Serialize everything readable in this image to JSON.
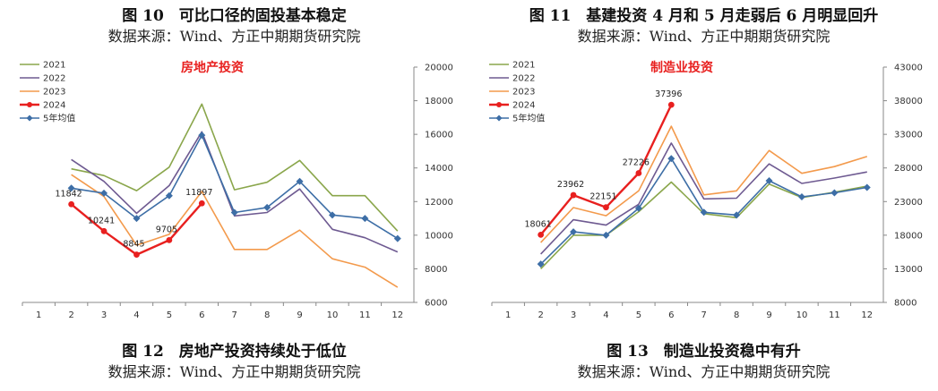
{
  "left": {
    "top_title": "图 10　可比口径的固投基本稳定",
    "top_source": "数据来源：Wind、方正中期期货研究院",
    "bottom_title": "图 12　房地产投资持续处于低位",
    "bottom_source": "数据来源：Wind、方正中期期货研究院"
  },
  "right": {
    "top_title": "图 11　基建投资 4 月和 5 月走弱后 6 月明显回升",
    "top_source": "数据来源：Wind、方正中期期货研究院",
    "bottom_title": "图 13　制造业投资稳中有升",
    "bottom_source": "数据来源：Wind、方正中期期货研究院"
  },
  "chart_data": [
    {
      "type": "line",
      "title": "房地产投资",
      "title_color": "#e8201f",
      "categories": [
        "1",
        "2",
        "3",
        "4",
        "5",
        "6",
        "7",
        "8",
        "9",
        "10",
        "11",
        "12"
      ],
      "yticks": [
        "6000",
        "8000",
        "10000",
        "12000",
        "14000",
        "16000",
        "18000",
        "20000"
      ],
      "ylim": [
        6000,
        20000
      ],
      "y_axis_side": "right",
      "grid": false,
      "legend_position": "top-left",
      "series": [
        {
          "name": "2021",
          "color": "#8aa64b",
          "marker": false,
          "values": [
            null,
            13950,
            13550,
            12650,
            14050,
            17800,
            12700,
            13150,
            14450,
            12350,
            12350,
            10250
          ],
          "labels": []
        },
        {
          "name": "2022",
          "color": "#6e5a91",
          "marker": false,
          "values": [
            null,
            14500,
            13200,
            11300,
            12950,
            16150,
            11150,
            11350,
            12750,
            10350,
            9850,
            9000
          ],
          "labels": []
        },
        {
          "name": "2023",
          "color": "#f39a4c",
          "marker": false,
          "values": [
            null,
            13600,
            12300,
            9400,
            10050,
            12600,
            9150,
            9150,
            10300,
            8600,
            8100,
            6900
          ],
          "labels": []
        },
        {
          "name": "2024",
          "color": "#e8201f",
          "marker": "circle",
          "bold": true,
          "values": [
            null,
            11842,
            10241,
            8845,
            9705,
            11897,
            null,
            null,
            null,
            null,
            null,
            null
          ],
          "labels": [
            "",
            "11842",
            "10241",
            "8845",
            "9705",
            "11897",
            "",
            "",
            "",
            "",
            "",
            ""
          ]
        },
        {
          "name": "5年均值",
          "color": "#3d6ea6",
          "marker": "diamond",
          "values": [
            null,
            12800,
            12500,
            11000,
            12350,
            15950,
            11350,
            11650,
            13200,
            11200,
            11000,
            9800
          ],
          "labels": []
        }
      ]
    },
    {
      "type": "line",
      "title": "制造业投资",
      "title_color": "#e8201f",
      "categories": [
        "1",
        "2",
        "3",
        "4",
        "5",
        "6",
        "7",
        "8",
        "9",
        "10",
        "11",
        "12"
      ],
      "yticks": [
        "8000",
        "13000",
        "18000",
        "23000",
        "28000",
        "33000",
        "38000",
        "43000"
      ],
      "ylim": [
        8000,
        43000
      ],
      "y_axis_side": "right",
      "grid": false,
      "legend_position": "top-left",
      "series": [
        {
          "name": "2021",
          "color": "#8aa64b",
          "marker": false,
          "values": [
            null,
            13000,
            18000,
            18000,
            21500,
            25900,
            21200,
            20600,
            25600,
            23600,
            24400,
            25300
          ],
          "labels": []
        },
        {
          "name": "2022",
          "color": "#6e5a91",
          "marker": false,
          "values": [
            null,
            15200,
            20300,
            19500,
            22600,
            31700,
            23400,
            23500,
            28600,
            25700,
            26500,
            27400
          ],
          "labels": []
        },
        {
          "name": "2023",
          "color": "#f39a4c",
          "marker": false,
          "values": [
            null,
            16900,
            22100,
            20900,
            24600,
            34200,
            24000,
            24600,
            30600,
            27200,
            28200,
            29700
          ],
          "labels": []
        },
        {
          "name": "2024",
          "color": "#e8201f",
          "marker": "circle",
          "bold": true,
          "values": [
            null,
            18061,
            23962,
            22151,
            27226,
            37396,
            null,
            null,
            null,
            null,
            null,
            null
          ],
          "labels": [
            "",
            "18061",
            "23962",
            "22151",
            "27226",
            "37396",
            "",
            "",
            "",
            "",
            "",
            ""
          ]
        },
        {
          "name": "5年均值",
          "color": "#3d6ea6",
          "marker": "diamond",
          "values": [
            null,
            13700,
            18500,
            18000,
            22000,
            29400,
            21400,
            21000,
            26100,
            23700,
            24300,
            25100
          ],
          "labels": []
        }
      ]
    }
  ]
}
